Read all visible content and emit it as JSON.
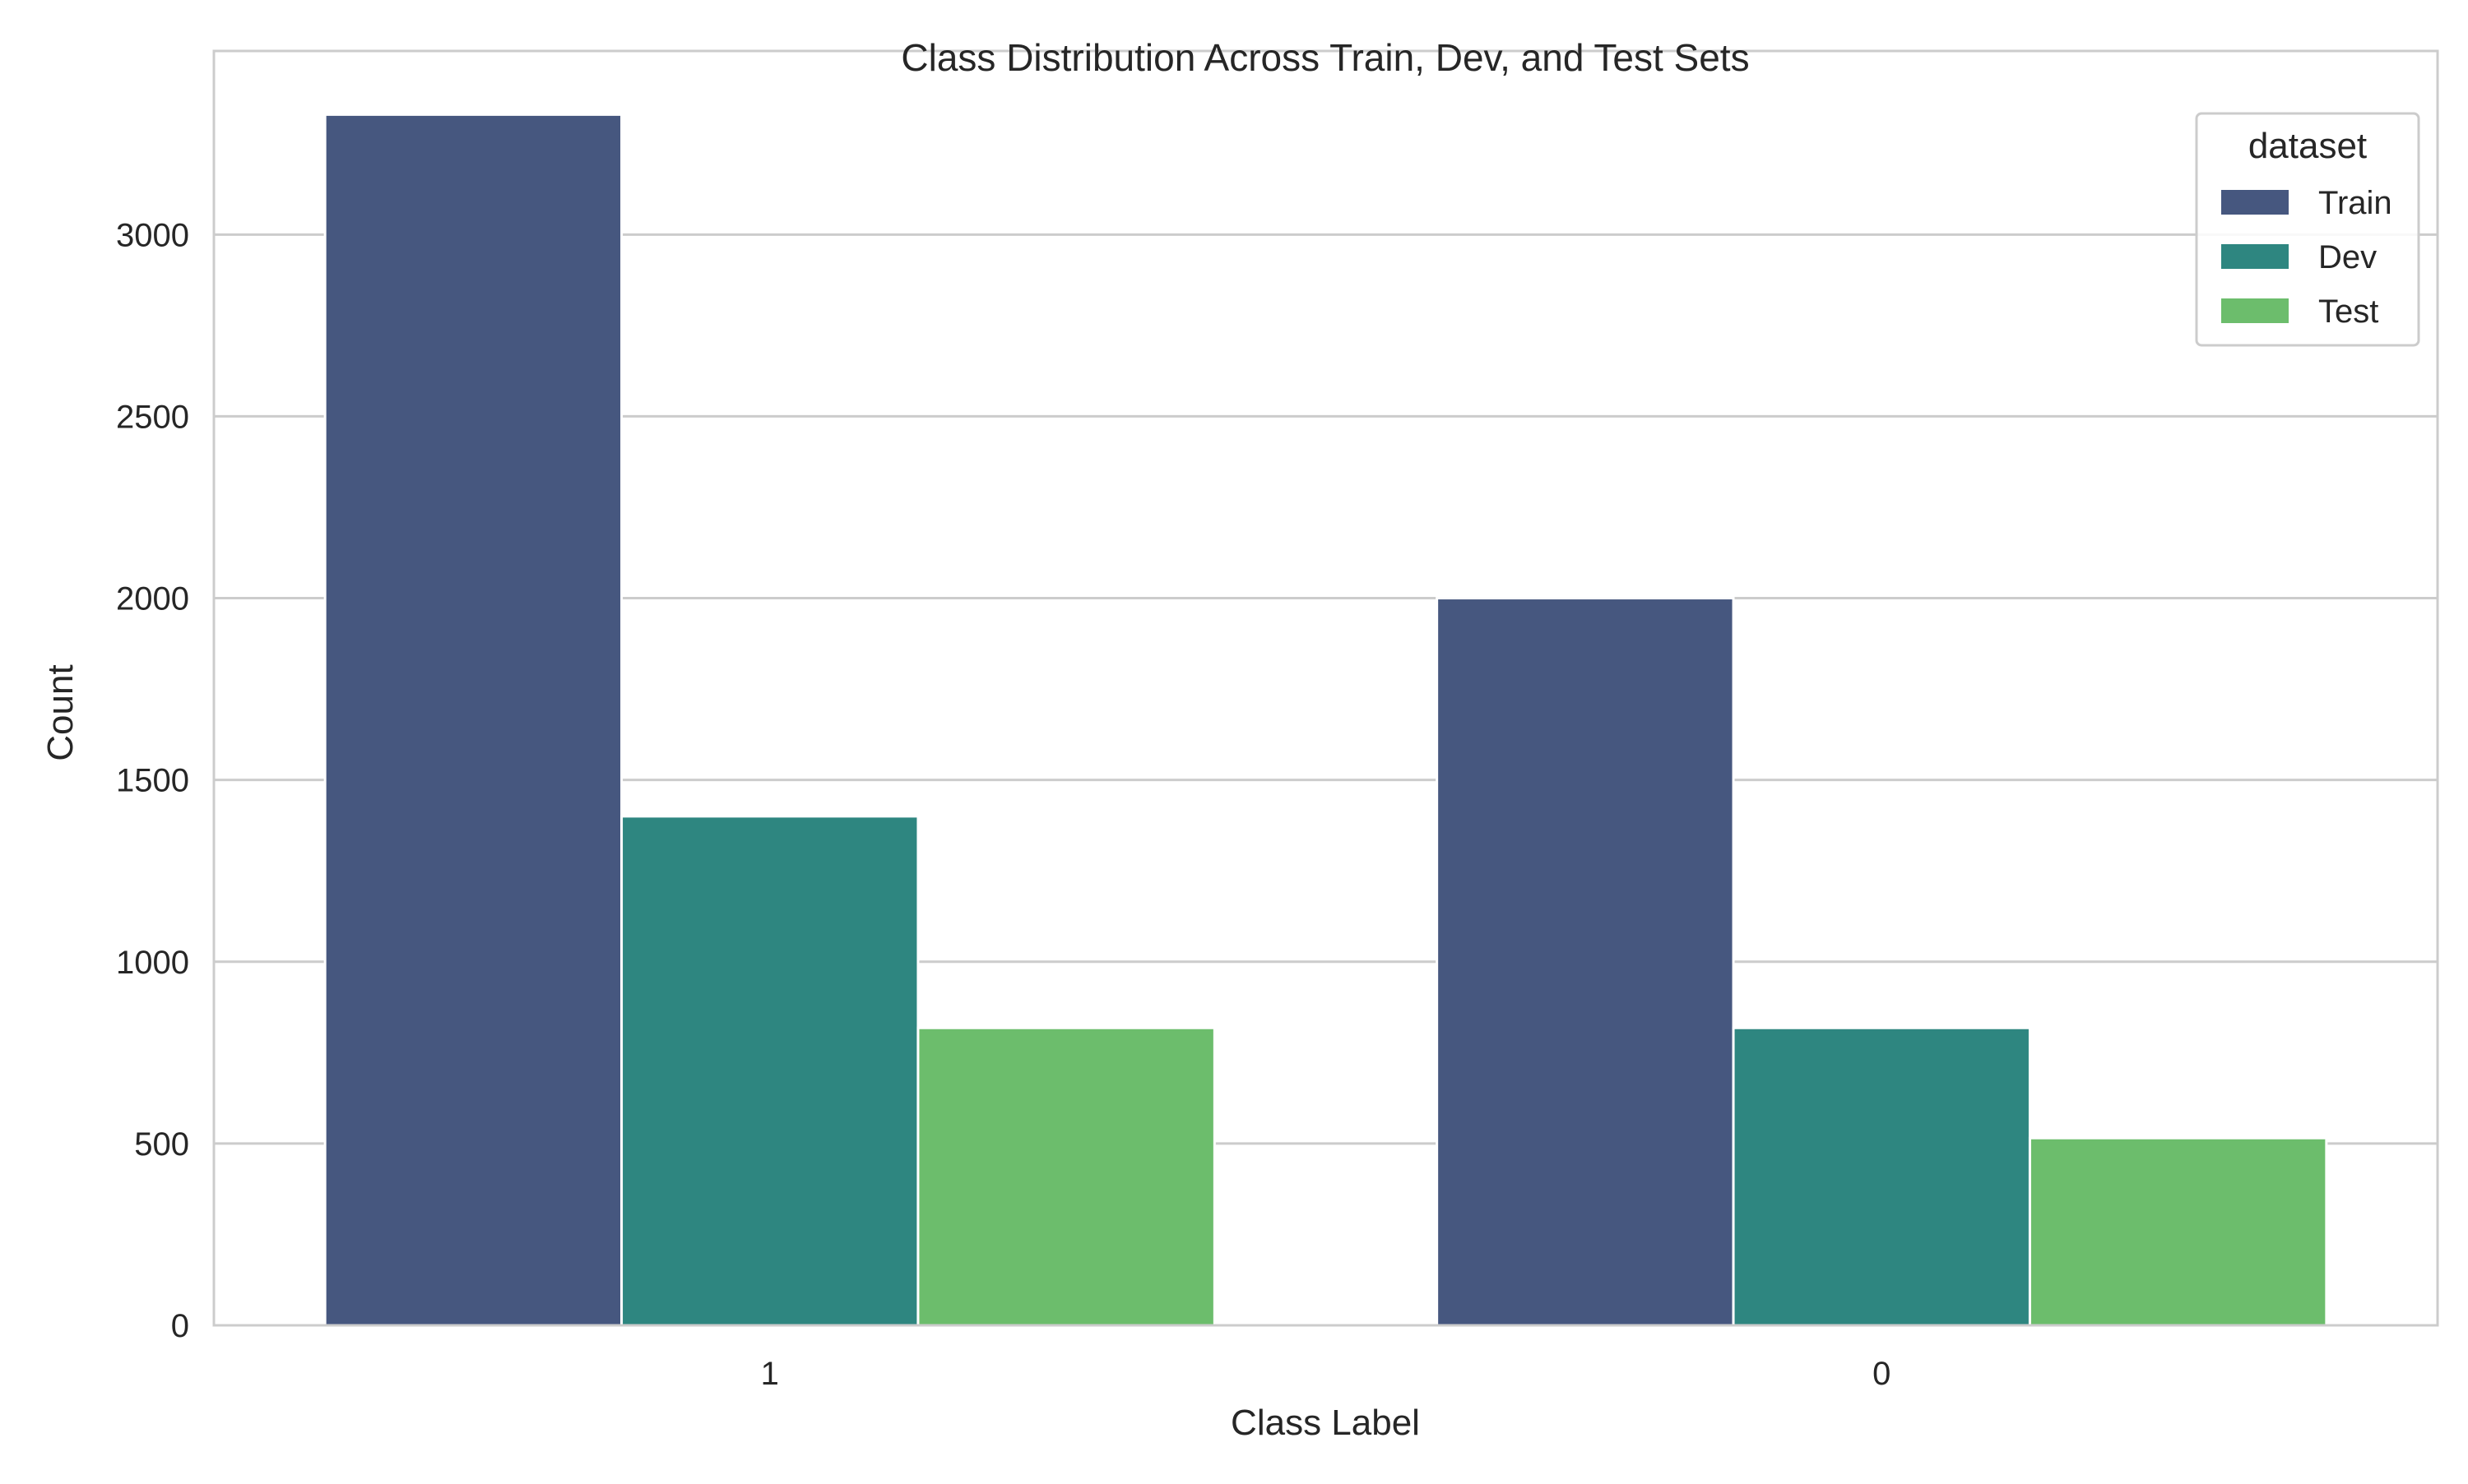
{
  "chart_data": {
    "type": "bar",
    "title": "Class Distribution Across Train, Dev, and Test Sets",
    "xlabel": "Class Label",
    "ylabel": "Count",
    "categories": [
      "1",
      "0"
    ],
    "series": [
      {
        "name": "Train",
        "values": [
          3330,
          2000
        ]
      },
      {
        "name": "Dev",
        "values": [
          1400,
          818
        ]
      },
      {
        "name": "Test",
        "values": [
          818,
          515
        ]
      }
    ],
    "ylim": [
      0,
      3505
    ],
    "yticks": [
      0,
      500,
      1000,
      1500,
      2000,
      2500,
      3000
    ],
    "grid": true,
    "legend": {
      "title": "dataset",
      "placement": "top-right"
    },
    "colors": {
      "Train": "#46577f",
      "Dev": "#2e8680",
      "Test": "#6cbd6c",
      "grid": "#cccccc",
      "spine": "#cccccc"
    }
  }
}
